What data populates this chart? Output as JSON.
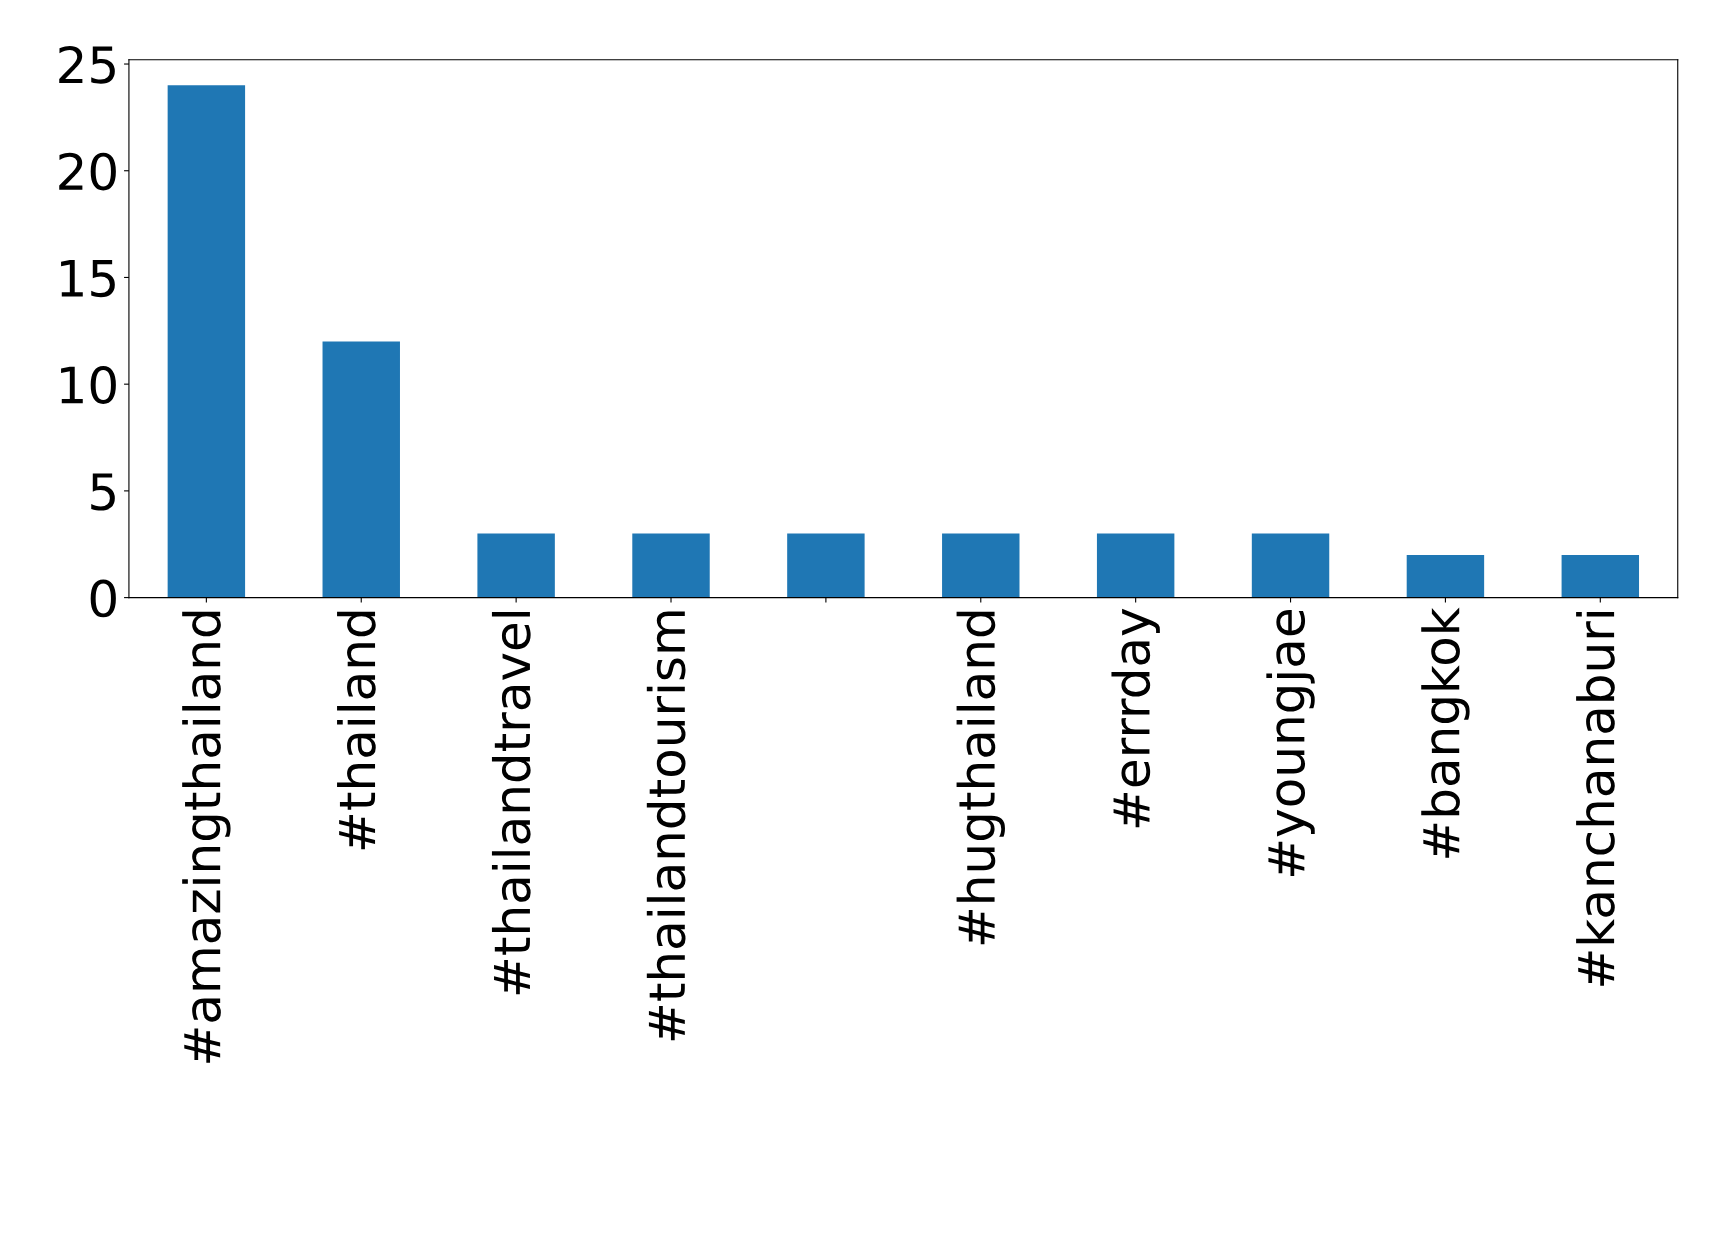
{
  "chart_data": {
    "type": "bar",
    "categories": [
      "#amazingthailand",
      "#thailand",
      "#thailandtravel",
      "#thailandtourism",
      null,
      "#hugthailand",
      "#errrday",
      "#youngjae",
      "#bangkok",
      "#kanchanaburi"
    ],
    "values": [
      24,
      12,
      3,
      3,
      3,
      3,
      3,
      3,
      2,
      2
    ],
    "color": "#1f77b4",
    "ylim": [
      0,
      25.2
    ],
    "yticks": [
      0,
      5,
      10,
      15,
      20,
      25
    ],
    "grid": false,
    "legend": false
  }
}
